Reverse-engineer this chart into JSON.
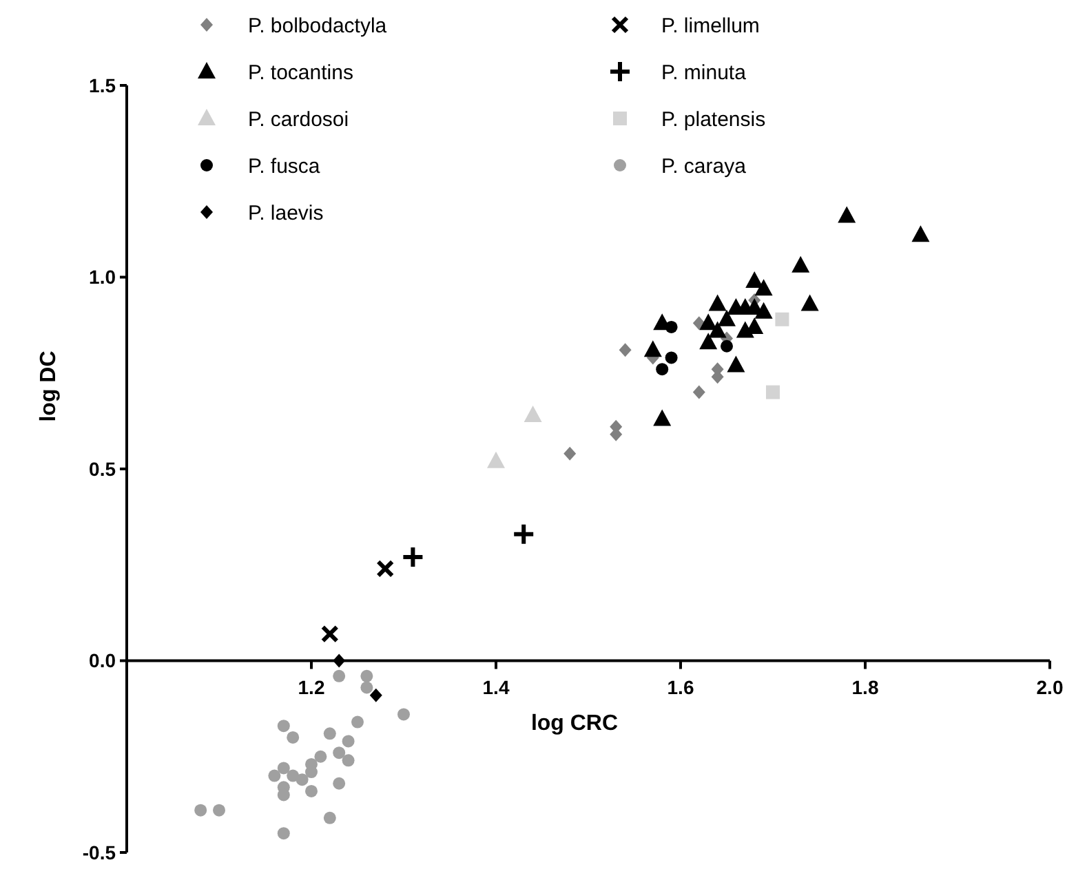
{
  "chart_data": {
    "type": "scatter",
    "xlabel": "log CRC",
    "ylabel": "log DC",
    "xlim": [
      1.0,
      2.0
    ],
    "ylim": [
      -0.5,
      1.5
    ],
    "xticks": [
      {
        "value": 1.2,
        "label": "1.2"
      },
      {
        "value": 1.4,
        "label": "1.4"
      },
      {
        "value": 1.6,
        "label": "1.6"
      },
      {
        "value": 1.8,
        "label": "1.8"
      },
      {
        "value": 2.0,
        "label": "2.0"
      }
    ],
    "yticks": [
      {
        "value": -0.5,
        "label": "-0.5"
      },
      {
        "value": 0,
        "label": "0.0"
      },
      {
        "value": 0.5,
        "label": "0.5"
      },
      {
        "value": 1.0,
        "label": "1.0"
      },
      {
        "value": 1.5,
        "label": "1.5"
      }
    ],
    "grid": false,
    "legend": "top left",
    "series": [
      {
        "name": "P. bolbodactyla",
        "color": "#808080",
        "marker": "diamond",
        "x": [
          1.48,
          1.53,
          1.53,
          1.54,
          1.57,
          1.62,
          1.68,
          1.64,
          1.64,
          1.62,
          1.65
        ],
        "values": [
          0.54,
          0.61,
          0.59,
          0.81,
          0.79,
          0.88,
          0.94,
          0.76,
          0.74,
          0.7,
          0.84
        ]
      },
      {
        "name": "P. tocantins",
        "color": "#000000",
        "marker": "triangle",
        "x": [
          1.78,
          1.86,
          1.73,
          1.74,
          1.68,
          1.69,
          1.64,
          1.66,
          1.67,
          1.68,
          1.69,
          1.58,
          1.63,
          1.65,
          1.64,
          1.67,
          1.68,
          1.63,
          1.57,
          1.66,
          1.58
        ],
        "values": [
          1.16,
          1.11,
          1.03,
          0.93,
          0.99,
          0.97,
          0.93,
          0.92,
          0.92,
          0.92,
          0.91,
          0.88,
          0.88,
          0.89,
          0.86,
          0.86,
          0.87,
          0.83,
          0.81,
          0.77,
          0.63
        ]
      },
      {
        "name": "P. cardosoi",
        "color": "#d0d0d0",
        "marker": "triangle",
        "x": [
          1.44,
          1.4
        ],
        "values": [
          0.64,
          0.52
        ]
      },
      {
        "name": "P. fusca",
        "color": "#000000",
        "marker": "circle",
        "x": [
          1.59,
          1.59,
          1.58,
          1.65
        ],
        "values": [
          0.87,
          0.79,
          0.76,
          0.82
        ]
      },
      {
        "name": "P. laevis",
        "color": "#000000",
        "marker": "diamond",
        "x": [
          1.23,
          1.27
        ],
        "values": [
          0.0,
          -0.09
        ]
      },
      {
        "name": "P. limellum",
        "color": "#000000",
        "marker": "x",
        "x": [
          1.22,
          1.28
        ],
        "values": [
          0.07,
          0.24
        ]
      },
      {
        "name": "P. minuta",
        "color": "#000000",
        "marker": "cross",
        "x": [
          1.31,
          1.43
        ],
        "values": [
          0.27,
          0.33
        ]
      },
      {
        "name": "P. platensis",
        "color": "#d3d3d3",
        "marker": "square",
        "x": [
          1.71,
          1.7
        ],
        "values": [
          0.89,
          0.7
        ]
      },
      {
        "name": "P. caraya",
        "color": "#a0a0a0",
        "marker": "circle",
        "x": [
          1.23,
          1.26,
          1.26,
          1.3,
          1.17,
          1.25,
          1.18,
          1.22,
          1.24,
          1.23,
          1.21,
          1.24,
          1.2,
          1.17,
          1.16,
          1.18,
          1.19,
          1.2,
          1.17,
          1.17,
          1.2,
          1.23,
          1.08,
          1.1,
          1.22,
          1.17
        ],
        "values": [
          -0.04,
          -0.04,
          -0.07,
          -0.14,
          -0.17,
          -0.16,
          -0.2,
          -0.19,
          -0.21,
          -0.24,
          -0.25,
          -0.26,
          -0.27,
          -0.28,
          -0.3,
          -0.3,
          -0.31,
          -0.29,
          -0.33,
          -0.35,
          -0.34,
          -0.32,
          -0.39,
          -0.39,
          -0.41,
          -0.45
        ]
      }
    ]
  }
}
